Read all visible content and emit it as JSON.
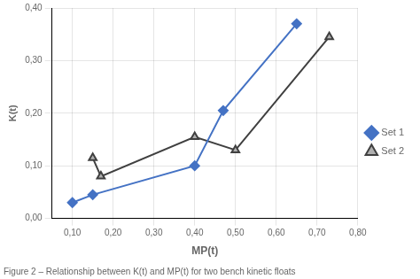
{
  "chart_data": {
    "type": "line",
    "caption": "Figure 2 – Relationship between K(t) and MP(t) for two bench kinetic floats",
    "x_label": "MP(t)",
    "y_label": "K(t)",
    "series": [
      {
        "name": "Set 1",
        "color": "#4472C4",
        "marker": "diamond",
        "line_style": "solid",
        "x": [
          0.1,
          0.15,
          0.4,
          0.47,
          0.65
        ],
        "values": [
          0.03,
          0.045,
          0.1,
          0.205,
          0.37
        ]
      },
      {
        "name": "Set 2",
        "color": "#404040",
        "marker": "triangle",
        "line_style": "solid",
        "x": [
          0.15,
          0.17,
          0.4,
          0.5,
          0.73
        ],
        "values": [
          0.115,
          0.08,
          0.155,
          0.13,
          0.345
        ]
      }
    ],
    "xlim": [
      0.05,
      0.8
    ],
    "ylim": [
      0.0,
      0.4
    ],
    "xticks": [
      {
        "value": 0.1,
        "label": "0,10"
      },
      {
        "value": 0.2,
        "label": "0,20"
      },
      {
        "value": 0.3,
        "label": "0,30"
      },
      {
        "value": 0.4,
        "label": "0,40"
      },
      {
        "value": 0.5,
        "label": "0,50"
      },
      {
        "value": 0.6,
        "label": "0,60"
      },
      {
        "value": 0.7,
        "label": "0,70"
      },
      {
        "value": 0.8,
        "label": "0,80"
      }
    ],
    "yticks": [
      {
        "value": 0.0,
        "label": "0,00"
      },
      {
        "value": 0.1,
        "label": "0,10"
      },
      {
        "value": 0.2,
        "label": "0,20"
      },
      {
        "value": 0.3,
        "label": "0,30"
      },
      {
        "value": 0.4,
        "label": "0,40"
      }
    ],
    "grid": true,
    "legend": "right"
  }
}
